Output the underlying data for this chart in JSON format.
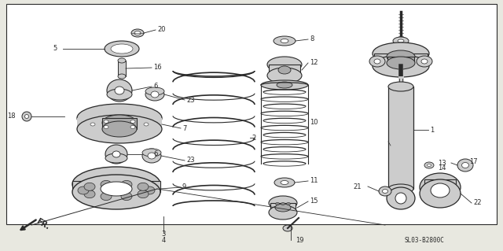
{
  "bg_color": "#e8e8e0",
  "white": "#ffffff",
  "lc": "#2a2a2a",
  "gray_light": "#cccccc",
  "gray_mid": "#aaaaaa",
  "gray_dark": "#888888",
  "diagram_code": "SL03-B2800C",
  "fr_label": "FR.",
  "label_fs": 6.0,
  "figw": 6.4,
  "figh": 3.19,
  "dpi": 100
}
